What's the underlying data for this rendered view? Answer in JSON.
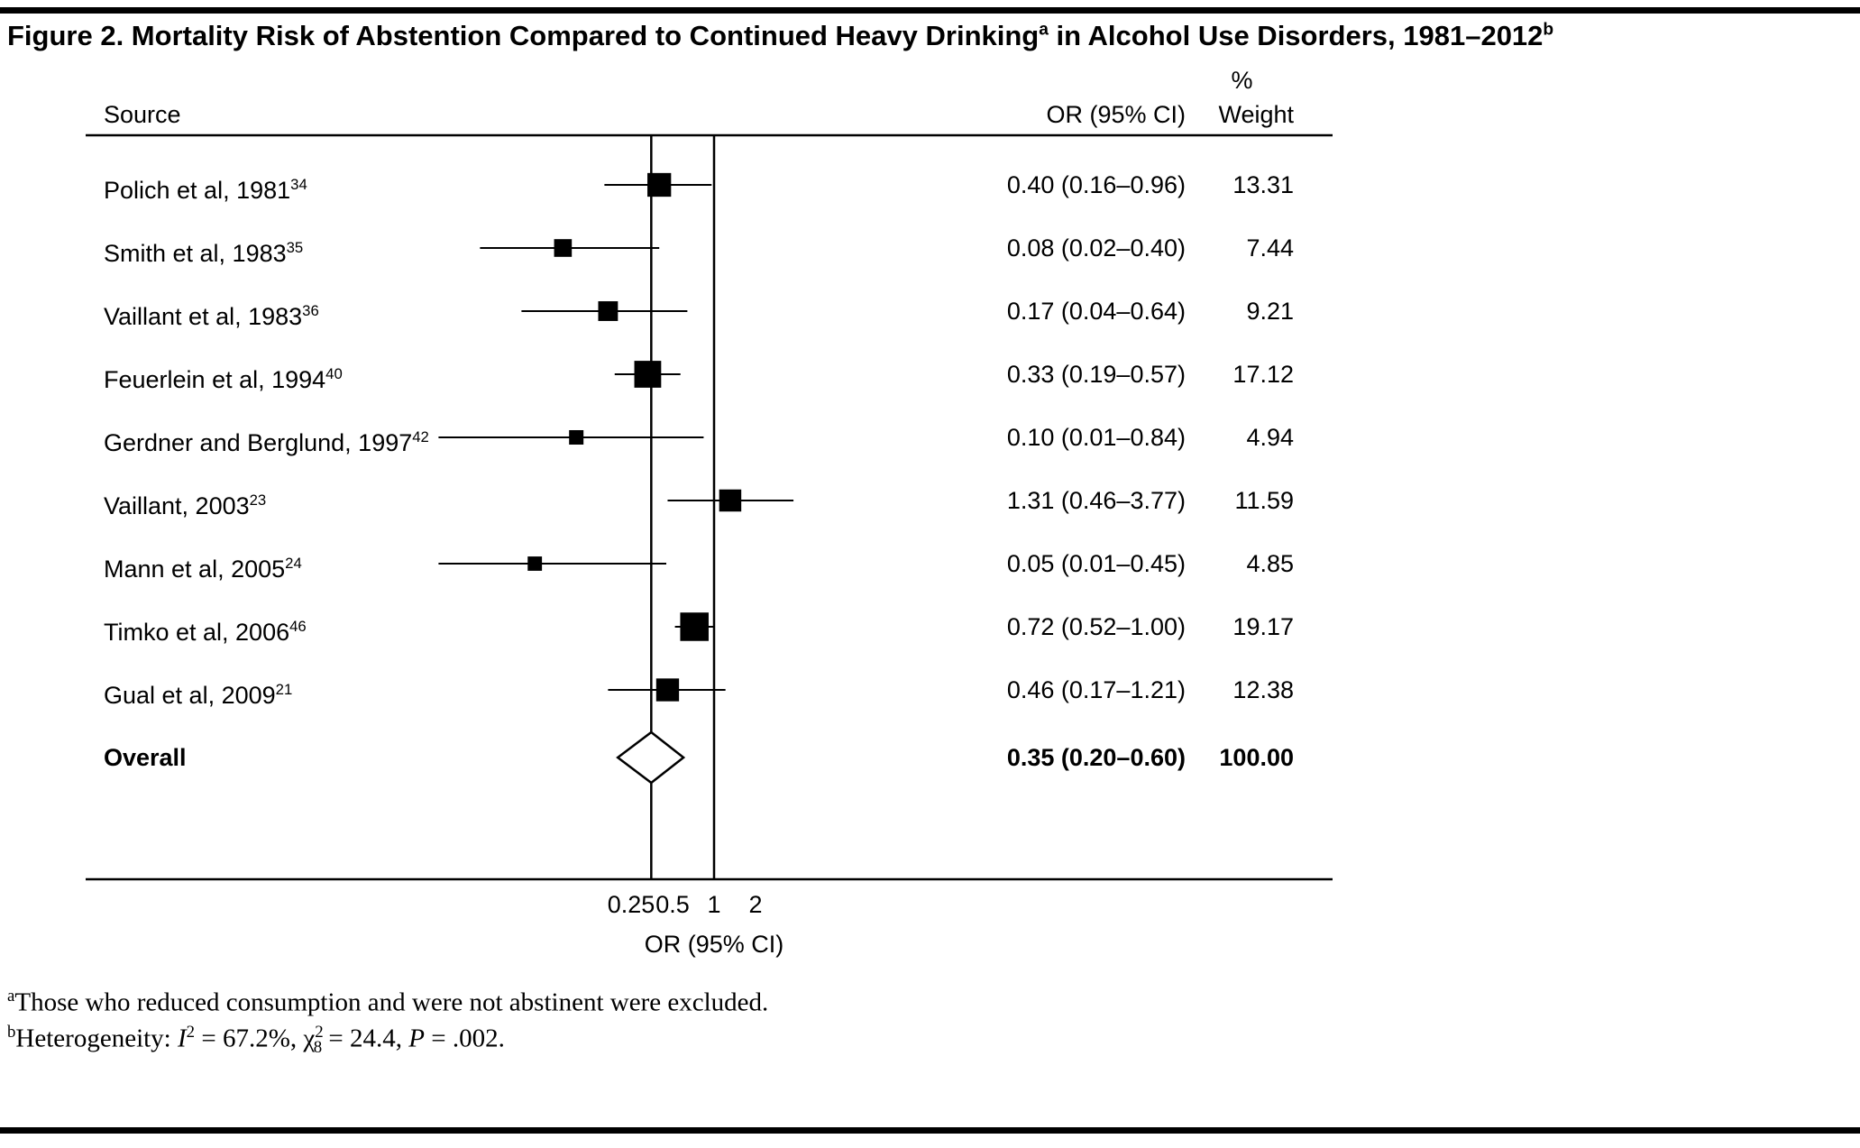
{
  "title": {
    "main": "Figure 2. Mortality Risk of Abstention Compared to Continued Heavy Drinking",
    "sup_a": "a",
    "rest": " in Alcohol Use Disorders, 1981–2012",
    "sup_b": "b"
  },
  "headers": {
    "source": "Source",
    "or_ci": "OR (95% CI)",
    "pct": "%",
    "weight": "Weight"
  },
  "chart_data": {
    "type": "forest",
    "x_scale": "log2",
    "x_range": [
      0.01,
      4
    ],
    "xlabel": "OR (95% CI)",
    "grid": false,
    "x_ticks": [
      {
        "value": 0.25,
        "label": "0.25"
      },
      {
        "value": 0.5,
        "label": "0.5"
      },
      {
        "value": 1,
        "label": "1"
      },
      {
        "value": 2,
        "label": "2"
      }
    ],
    "reference_line_or": 1.0,
    "overall_line_or": 0.35,
    "studies": [
      {
        "source": "Polich et al, 1981",
        "ref": "34",
        "or": 0.4,
        "ci_low": 0.16,
        "ci_high": 0.96,
        "or_text": "0.40 (0.16–0.96)",
        "weight": 13.31,
        "weight_text": "13.31"
      },
      {
        "source": "Smith et al, 1983",
        "ref": "35",
        "or": 0.08,
        "ci_low": 0.02,
        "ci_high": 0.4,
        "or_text": "0.08 (0.02–0.40)",
        "weight": 7.44,
        "weight_text": "7.44"
      },
      {
        "source": "Vaillant et al, 1983",
        "ref": "36",
        "or": 0.17,
        "ci_low": 0.04,
        "ci_high": 0.64,
        "or_text": "0.17 (0.04–0.64)",
        "weight": 9.21,
        "weight_text": "9.21"
      },
      {
        "source": "Feuerlein et al, 1994",
        "ref": "40",
        "or": 0.33,
        "ci_low": 0.19,
        "ci_high": 0.57,
        "or_text": "0.33 (0.19–0.57)",
        "weight": 17.12,
        "weight_text": "17.12"
      },
      {
        "source": "Gerdner and Berglund, 1997",
        "ref": "42",
        "or": 0.1,
        "ci_low": 0.01,
        "ci_high": 0.84,
        "or_text": "0.10 (0.01–0.84)",
        "weight": 4.94,
        "weight_text": "4.94"
      },
      {
        "source": "Vaillant, 2003",
        "ref": "23",
        "or": 1.31,
        "ci_low": 0.46,
        "ci_high": 3.77,
        "or_text": "1.31 (0.46–3.77)",
        "weight": 11.59,
        "weight_text": "11.59"
      },
      {
        "source": "Mann et al, 2005",
        "ref": "24",
        "or": 0.05,
        "ci_low": 0.01,
        "ci_high": 0.45,
        "or_text": "0.05 (0.01–0.45)",
        "weight": 4.85,
        "weight_text": "4.85"
      },
      {
        "source": "Timko et al, 2006",
        "ref": "46",
        "or": 0.72,
        "ci_low": 0.52,
        "ci_high": 1.0,
        "or_text": "0.72 (0.52–1.00)",
        "weight": 19.17,
        "weight_text": "19.17"
      },
      {
        "source": "Gual et al, 2009",
        "ref": "21",
        "or": 0.46,
        "ci_low": 0.17,
        "ci_high": 1.21,
        "or_text": "0.46 (0.17–1.21)",
        "weight": 12.38,
        "weight_text": "12.38"
      }
    ],
    "overall": {
      "label": "Overall",
      "or": 0.35,
      "ci_low": 0.2,
      "ci_high": 0.6,
      "or_text": "0.35 (0.20–0.60)",
      "weight_text": "100.00"
    }
  },
  "footnotes": {
    "a_marker": "a",
    "a_text": "Those who reduced consumption and were not abstinent were excluded.",
    "b_marker": "b",
    "b_t1": "Heterogeneity: ",
    "b_i_sym": "I",
    "b_i_sup": "2",
    "b_t2": " = 67.2%, χ",
    "b_chi_sup": "2",
    "b_chi_sub": "8",
    "b_t3": " = 24.4, ",
    "b_p_sym": "P",
    "b_t4": " = .002."
  },
  "colors": {
    "ink": "#000000",
    "background": "#ffffff"
  }
}
